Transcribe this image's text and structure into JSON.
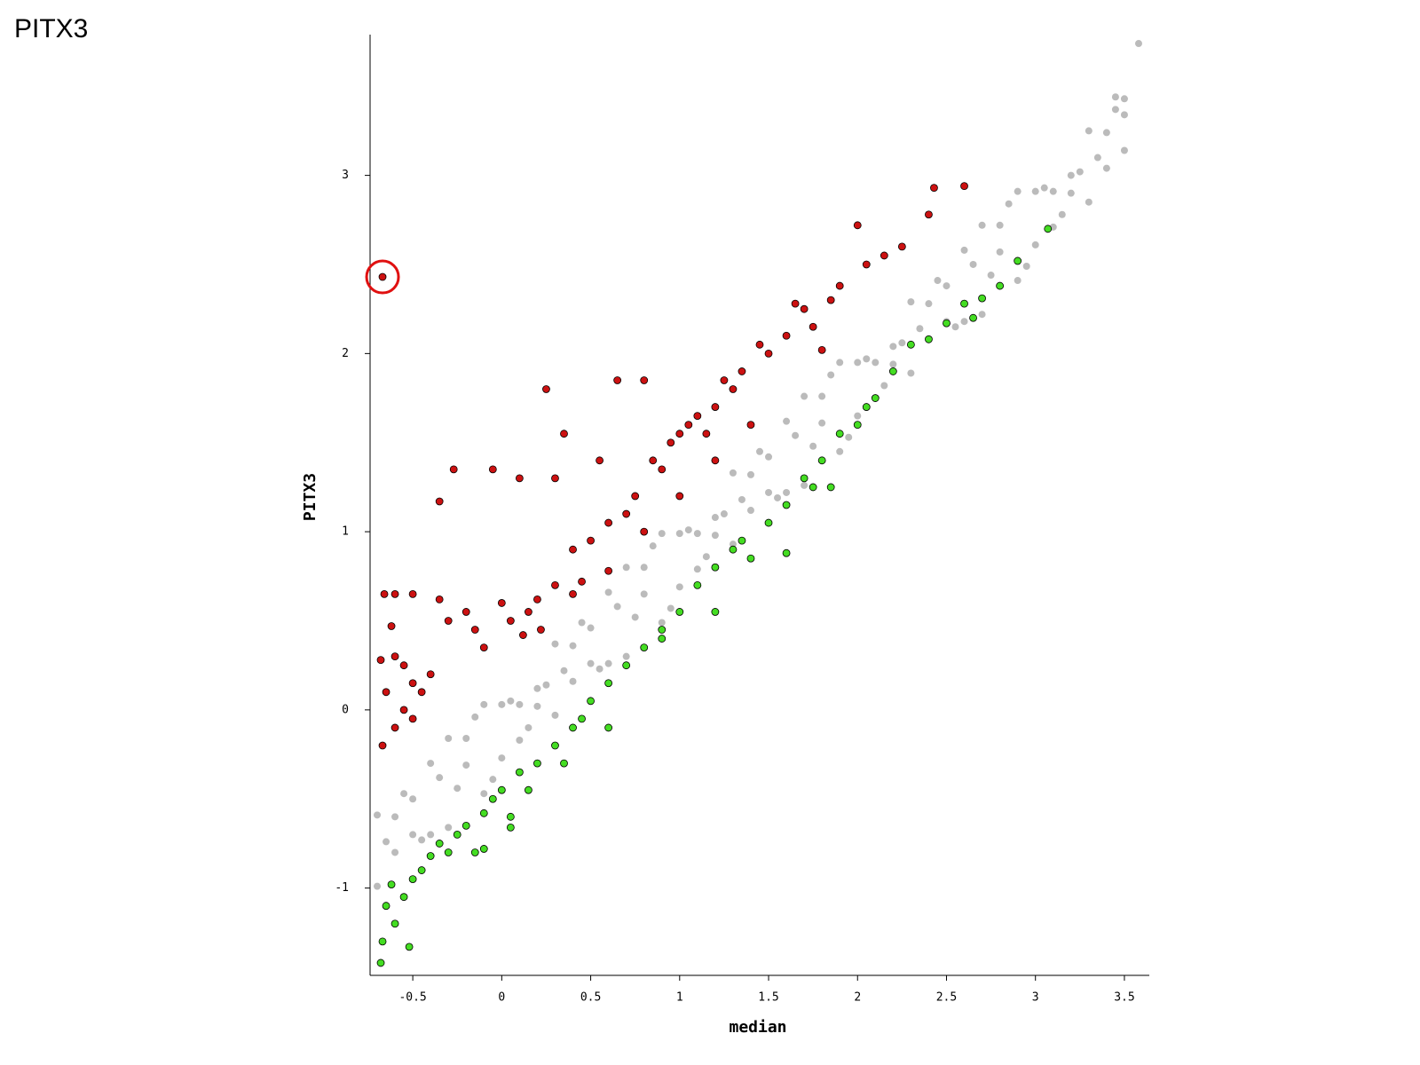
{
  "chart_data": {
    "type": "scatter",
    "title": "PITX3",
    "x_label": "median",
    "y_label": "PITX3",
    "xlim": [
      -0.74,
      3.64
    ],
    "ylim": [
      -1.49,
      3.79
    ],
    "xticks": [
      -0.5,
      0,
      0.5,
      1,
      1.5,
      2,
      2.5,
      3,
      3.5
    ],
    "yticks": [
      -1,
      0,
      1,
      2,
      3
    ],
    "series": [
      {
        "color": "#bbbbbb",
        "x": [
          -0.7,
          -0.7,
          -0.6,
          -0.6,
          -0.5,
          -0.5,
          -0.4,
          -0.4,
          -0.3,
          -0.3,
          -0.2,
          -0.2,
          -0.1,
          -0.1,
          0,
          0,
          0.1,
          0.1,
          0.2,
          0.2,
          0.3,
          0.3,
          0.4,
          0.4,
          0.5,
          0.5,
          0.6,
          0.6,
          0.7,
          0.7,
          0.8,
          0.8,
          0.9,
          0.9,
          1.0,
          1.0,
          1.1,
          1.1,
          1.2,
          1.2,
          1.3,
          1.3,
          1.4,
          1.4,
          1.5,
          1.5,
          1.6,
          1.6,
          1.7,
          1.7,
          1.8,
          1.8,
          1.9,
          1.9,
          2.0,
          2.0,
          2.1,
          2.1,
          2.2,
          2.2,
          2.3,
          2.3,
          2.4,
          2.4,
          2.5,
          2.5,
          2.6,
          2.6,
          2.7,
          2.7,
          2.8,
          2.8,
          2.9,
          2.9,
          3.0,
          3.0,
          3.1,
          3.1,
          3.2,
          3.2,
          3.3,
          3.3,
          3.4,
          3.4,
          3.5,
          3.5,
          3.58,
          3.45,
          3.5,
          -0.65,
          -0.55,
          -0.45,
          -0.35,
          -0.25,
          -0.15,
          -0.05,
          0.05,
          0.15,
          0.25,
          0.35,
          0.45,
          0.55,
          0.65,
          0.75,
          0.85,
          0.95,
          1.05,
          1.15,
          1.25,
          1.35,
          1.45,
          1.55,
          1.65,
          1.75,
          1.85,
          1.95,
          2.05,
          2.15,
          2.25,
          2.35,
          2.45,
          2.55,
          2.65,
          2.75,
          2.85,
          2.95,
          3.05,
          3.15,
          3.25,
          3.35,
          3.45
        ],
        "values": [
          -0.59,
          -0.99,
          -0.8,
          -0.6,
          -0.5,
          -0.7,
          -0.7,
          -0.3,
          -0.16,
          -0.66,
          -0.31,
          -0.16,
          -0.47,
          0.03,
          0.03,
          -0.27,
          -0.17,
          0.03,
          0.12,
          0.02,
          0.37,
          -0.03,
          0.16,
          0.36,
          0.46,
          0.26,
          0.26,
          0.66,
          0.8,
          0.3,
          0.65,
          0.8,
          0.49,
          0.99,
          0.99,
          0.69,
          0.79,
          0.99,
          1.08,
          0.98,
          1.33,
          0.93,
          1.12,
          1.32,
          1.42,
          1.22,
          1.22,
          1.62,
          1.76,
          1.26,
          1.61,
          1.76,
          1.45,
          1.95,
          1.95,
          1.65,
          1.75,
          1.95,
          2.04,
          1.94,
          2.29,
          1.89,
          2.08,
          2.28,
          2.38,
          2.18,
          2.18,
          2.58,
          2.72,
          2.22,
          2.57,
          2.72,
          2.41,
          2.91,
          2.91,
          2.61,
          2.71,
          2.91,
          3.0,
          2.9,
          3.25,
          2.85,
          3.04,
          3.24,
          3.34,
          3.14,
          3.74,
          3.44,
          3.43,
          -0.74,
          -0.47,
          -0.73,
          -0.38,
          -0.44,
          -0.04,
          -0.39,
          0.05,
          -0.1,
          0.14,
          0.22,
          0.49,
          0.23,
          0.58,
          0.52,
          0.92,
          0.57,
          1.01,
          0.86,
          1.1,
          1.18,
          1.45,
          1.19,
          1.54,
          1.48,
          1.88,
          1.53,
          1.97,
          1.82,
          2.06,
          2.14,
          2.41,
          2.15,
          2.5,
          2.44,
          2.84,
          2.49,
          2.93,
          2.78,
          3.02,
          3.1,
          3.37
        ]
      },
      {
        "color": "#cc1111",
        "x": [
          -0.67,
          -0.66,
          -0.6,
          -0.5,
          -0.62,
          -0.68,
          -0.65,
          -0.67,
          -0.6,
          -0.55,
          -0.5,
          -0.45,
          -0.4,
          -0.35,
          -0.3,
          -0.35,
          -0.27,
          -0.2,
          -0.15,
          -0.1,
          -0.05,
          0,
          0.05,
          0.1,
          0.12,
          0.2,
          0.25,
          0.3,
          0.3,
          0.35,
          0.4,
          0.45,
          0.5,
          0.55,
          0.6,
          0.65,
          0.7,
          0.75,
          0.8,
          0.85,
          0.9,
          0.95,
          1.0,
          1.05,
          1.1,
          1.15,
          1.2,
          1.25,
          1.3,
          1.35,
          1.45,
          1.5,
          1.6,
          1.65,
          1.7,
          1.75,
          1.85,
          1.9,
          2.0,
          2.05,
          2.15,
          2.25,
          2.4,
          2.43,
          2.6,
          -0.6,
          -0.55,
          -0.5,
          0.15,
          0.22,
          0.4,
          0.6,
          0.8,
          1.0,
          1.2,
          1.4,
          1.8
        ],
        "values": [
          2.43,
          0.65,
          0.65,
          0.65,
          0.47,
          0.28,
          0.1,
          -0.2,
          -0.1,
          0.0,
          -0.05,
          0.1,
          0.2,
          0.62,
          0.5,
          1.17,
          1.35,
          0.55,
          0.45,
          0.35,
          1.35,
          0.6,
          0.5,
          1.3,
          0.42,
          0.62,
          1.8,
          1.3,
          0.7,
          1.55,
          0.9,
          0.72,
          0.95,
          1.4,
          1.05,
          1.85,
          1.1,
          1.2,
          1.85,
          1.4,
          1.35,
          1.5,
          1.55,
          1.6,
          1.65,
          1.55,
          1.7,
          1.85,
          1.8,
          1.9,
          2.05,
          2.0,
          2.1,
          2.28,
          2.25,
          2.15,
          2.3,
          2.38,
          2.72,
          2.5,
          2.55,
          2.6,
          2.78,
          2.93,
          2.94,
          0.3,
          0.25,
          0.15,
          0.55,
          0.45,
          0.65,
          0.78,
          1.0,
          1.2,
          1.4,
          1.6,
          2.02
        ]
      },
      {
        "color": "#44dd22",
        "x": [
          -0.68,
          -0.67,
          -0.65,
          -0.62,
          -0.6,
          -0.55,
          -0.52,
          -0.5,
          -0.45,
          -0.4,
          -0.35,
          -0.3,
          -0.25,
          -0.2,
          -0.15,
          -0.1,
          -0.05,
          0,
          0.05,
          0.1,
          0.15,
          0.2,
          0.3,
          0.35,
          0.4,
          0.45,
          0.5,
          0.6,
          0.6,
          0.7,
          0.8,
          0.9,
          0.9,
          1.0,
          1.1,
          1.2,
          1.2,
          1.3,
          1.35,
          1.4,
          1.5,
          1.6,
          1.6,
          1.7,
          1.75,
          1.8,
          1.85,
          1.9,
          2.0,
          2.05,
          2.1,
          2.2,
          2.3,
          2.4,
          2.5,
          2.6,
          2.65,
          2.7,
          2.8,
          2.9,
          3.07,
          -0.1,
          0.05
        ],
        "values": [
          -1.42,
          -1.3,
          -1.1,
          -0.98,
          -1.2,
          -1.05,
          -1.33,
          -0.95,
          -0.9,
          -0.82,
          -0.75,
          -0.8,
          -0.7,
          -0.65,
          -0.8,
          -0.58,
          -0.5,
          -0.45,
          -0.6,
          -0.35,
          -0.45,
          -0.3,
          -0.2,
          -0.3,
          -0.1,
          -0.05,
          0.05,
          0.15,
          -0.1,
          0.25,
          0.35,
          0.4,
          0.45,
          0.55,
          0.7,
          0.55,
          0.8,
          0.9,
          0.95,
          0.85,
          1.05,
          1.15,
          0.88,
          1.3,
          1.25,
          1.4,
          1.25,
          1.55,
          1.6,
          1.7,
          1.75,
          1.9,
          2.05,
          2.08,
          2.17,
          2.28,
          2.2,
          2.31,
          2.38,
          2.52,
          2.7,
          -0.78,
          -0.66
        ]
      }
    ]
  }
}
